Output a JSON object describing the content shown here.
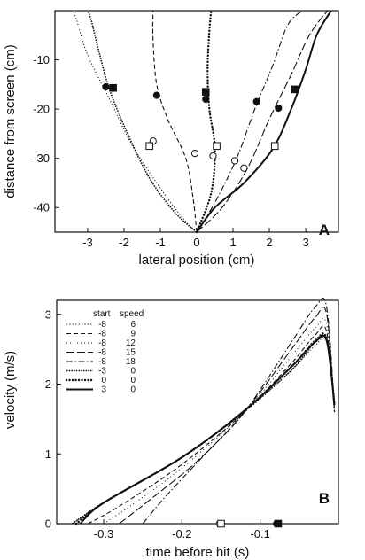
{
  "chart_data": [
    {
      "panel_label": "A",
      "type": "line",
      "xlabel": "lateral position (cm)",
      "ylabel": "distance from screen (cm)",
      "xlim": [
        -3.9,
        3.9
      ],
      "ylim": [
        -45,
        0
      ],
      "xticks": [
        "-3",
        "-2",
        "-1",
        "0",
        "1",
        "2",
        "3"
      ],
      "yticks": [
        "-10",
        "-20",
        "-30",
        "-40"
      ],
      "series": [
        {
          "style": "dotted",
          "x": [
            0.0,
            -0.4,
            -1.1,
            -1.8,
            -2.4,
            -3.0,
            -3.3,
            -3.4
          ],
          "y": [
            -45,
            -42,
            -35,
            -27,
            -18,
            -9,
            -2,
            0
          ]
        },
        {
          "style": "densedot",
          "x": [
            0.0,
            -0.6,
            -1.3,
            -1.9,
            -2.4,
            -2.7,
            -2.9,
            -3.0
          ],
          "y": [
            -45,
            -41,
            -34,
            -25,
            -16,
            -8,
            -2,
            0
          ]
        },
        {
          "style": "dashed",
          "x": [
            0.0,
            -0.1,
            -0.3,
            -0.8,
            -1.1,
            -1.2,
            -1.2
          ],
          "y": [
            -45,
            -38,
            -30,
            -22,
            -15,
            -6,
            0
          ]
        },
        {
          "style": "bigdot",
          "x": [
            0.0,
            0.4,
            0.5,
            0.35,
            0.3,
            0.35,
            0.4
          ],
          "y": [
            -45,
            -37,
            -28,
            -20,
            -12,
            -4,
            0
          ]
        },
        {
          "style": "dashdot",
          "x": [
            0.0,
            0.5,
            1.1,
            1.6,
            2.1,
            2.5,
            2.9
          ],
          "y": [
            -45,
            -39,
            -30,
            -20,
            -11,
            -3,
            0
          ]
        },
        {
          "style": "longdash",
          "x": [
            0.0,
            0.7,
            1.4,
            2.0,
            2.6,
            3.1,
            3.6
          ],
          "y": [
            -45,
            -40,
            -32,
            -22,
            -13,
            -5,
            0
          ]
        },
        {
          "style": "solid-thick",
          "x": [
            0.0,
            0.5,
            1.3,
            2.1,
            2.6,
            3.0,
            3.3,
            3.7
          ],
          "y": [
            -45,
            -40,
            -35,
            -28,
            -20,
            -12,
            -5,
            0
          ]
        }
      ],
      "markers": [
        {
          "shape": "filled-circle",
          "x": -2.5,
          "y": -15.5
        },
        {
          "shape": "filled-square",
          "x": -2.3,
          "y": -15.7
        },
        {
          "shape": "filled-circle",
          "x": -1.1,
          "y": -17.2
        },
        {
          "shape": "filled-square",
          "x": 0.25,
          "y": -16.5
        },
        {
          "shape": "filled-circle",
          "x": 0.25,
          "y": -18.0
        },
        {
          "shape": "filled-circle",
          "x": 1.65,
          "y": -18.5
        },
        {
          "shape": "filled-circle",
          "x": 2.25,
          "y": -19.8
        },
        {
          "shape": "filled-square",
          "x": 2.7,
          "y": -16.0
        },
        {
          "shape": "open-circle",
          "x": -1.2,
          "y": -26.5
        },
        {
          "shape": "open-square",
          "x": -1.3,
          "y": -27.5
        },
        {
          "shape": "open-circle",
          "x": -0.05,
          "y": -29.0
        },
        {
          "shape": "open-square",
          "x": 0.55,
          "y": -27.5
        },
        {
          "shape": "open-circle",
          "x": 0.45,
          "y": -29.5
        },
        {
          "shape": "open-circle",
          "x": 1.05,
          "y": -30.5
        },
        {
          "shape": "open-circle",
          "x": 1.3,
          "y": -32.0
        },
        {
          "shape": "open-square",
          "x": 2.15,
          "y": -27.5
        }
      ]
    },
    {
      "panel_label": "B",
      "type": "line",
      "xlabel": "time before hit (s)",
      "ylabel": "velocity (m/s)",
      "xlim": [
        -0.36,
        0.0
      ],
      "ylim": [
        0,
        3.2
      ],
      "xticks": [
        "-0.3",
        "-0.2",
        "-0.1"
      ],
      "yticks": [
        "0",
        "1",
        "2",
        "3"
      ],
      "legend": {
        "headers": [
          "start",
          "speed"
        ],
        "rows": [
          {
            "start": "-8",
            "speed": "6",
            "style": "dotted"
          },
          {
            "start": "-8",
            "speed": "9",
            "style": "dashed"
          },
          {
            "start": "-8",
            "speed": "12",
            "style": "finedot"
          },
          {
            "start": "-8",
            "speed": "15",
            "style": "longdash"
          },
          {
            "start": "-8",
            "speed": "18",
            "style": "dashdot"
          },
          {
            "start": "-3",
            "speed": "0",
            "style": "densedot"
          },
          {
            "start": "0",
            "speed": "0",
            "style": "bigdot"
          },
          {
            "start": "3",
            "speed": "0",
            "style": "solid-thick"
          }
        ]
      },
      "series": [
        {
          "style": "dotted",
          "x": [
            -0.34,
            -0.3,
            -0.2,
            -0.12,
            -0.06,
            -0.03,
            -0.015,
            -0.005
          ],
          "y": [
            0.0,
            0.3,
            0.95,
            1.6,
            2.2,
            2.55,
            2.6,
            1.6
          ]
        },
        {
          "style": "dashed",
          "x": [
            -0.32,
            -0.28,
            -0.2,
            -0.12,
            -0.06,
            -0.03,
            -0.015,
            -0.005
          ],
          "y": [
            0.0,
            0.25,
            0.85,
            1.6,
            2.3,
            2.7,
            2.75,
            1.6
          ]
        },
        {
          "style": "finedot",
          "x": [
            -0.3,
            -0.26,
            -0.2,
            -0.12,
            -0.06,
            -0.03,
            -0.015,
            -0.005
          ],
          "y": [
            0.0,
            0.3,
            0.8,
            1.6,
            2.4,
            2.8,
            2.85,
            1.6
          ]
        },
        {
          "style": "longdash",
          "x": [
            -0.28,
            -0.24,
            -0.18,
            -0.12,
            -0.06,
            -0.03,
            -0.015,
            -0.005
          ],
          "y": [
            0.0,
            0.35,
            0.9,
            1.6,
            2.5,
            2.95,
            3.0,
            1.6
          ]
        },
        {
          "style": "dashdot",
          "x": [
            -0.25,
            -0.22,
            -0.17,
            -0.12,
            -0.06,
            -0.03,
            -0.015,
            -0.005
          ],
          "y": [
            0.0,
            0.4,
            1.0,
            1.6,
            2.6,
            3.1,
            3.1,
            1.6
          ]
        },
        {
          "style": "densedot",
          "x": [
            -0.34,
            -0.3,
            -0.2,
            -0.12,
            -0.06,
            -0.03,
            -0.015,
            -0.005
          ],
          "y": [
            0.0,
            0.3,
            0.95,
            1.62,
            2.2,
            2.6,
            2.65,
            1.7
          ]
        },
        {
          "style": "bigdot",
          "x": [
            -0.335,
            -0.3,
            -0.2,
            -0.12,
            -0.06,
            -0.03,
            -0.015,
            -0.005
          ],
          "y": [
            0.0,
            0.3,
            0.95,
            1.62,
            2.25,
            2.62,
            2.65,
            1.7
          ]
        },
        {
          "style": "solid-thick",
          "x": [
            -0.33,
            -0.3,
            -0.2,
            -0.12,
            -0.06,
            -0.03,
            -0.015,
            -0.005
          ],
          "y": [
            0.0,
            0.3,
            0.95,
            1.62,
            2.25,
            2.6,
            2.62,
            1.7
          ]
        }
      ],
      "markers": [
        {
          "shape": "open-circle",
          "x": -0.152,
          "y": 0.0
        },
        {
          "shape": "open-square",
          "x": -0.15,
          "y": 0.0
        },
        {
          "shape": "filled-circle",
          "x": -0.079,
          "y": 0.0
        },
        {
          "shape": "filled-square",
          "x": -0.077,
          "y": 0.0
        }
      ]
    }
  ]
}
